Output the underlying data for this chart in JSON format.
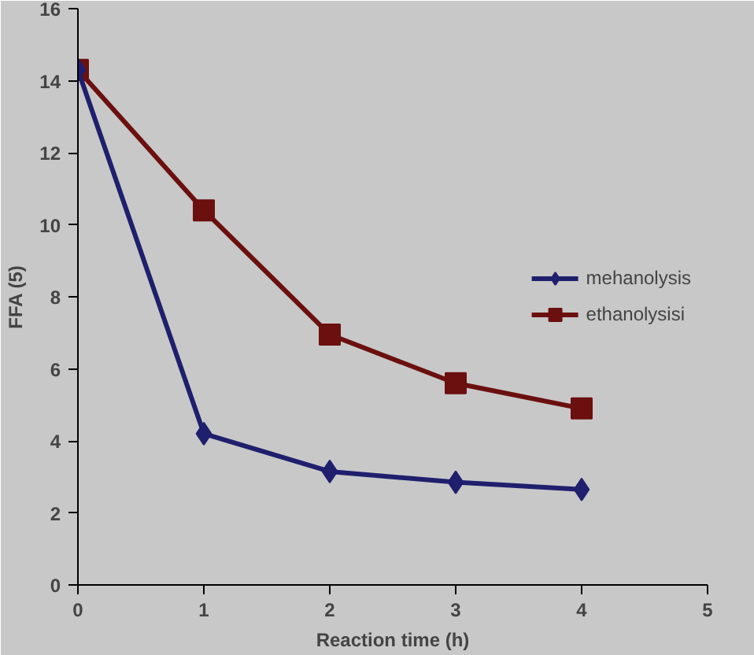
{
  "chart_data": {
    "type": "line",
    "xlabel": "Reaction time (h)",
    "ylabel": "FFA (5)",
    "x": [
      0,
      1,
      2,
      3,
      4
    ],
    "series": [
      {
        "name": "mehanolysis",
        "color": "#1f1f6e",
        "marker": "diamond",
        "values": [
          14.3,
          4.2,
          3.15,
          2.85,
          2.65
        ]
      },
      {
        "name": "ethanolysisi",
        "color": "#6b0f0f",
        "marker": "square",
        "values": [
          14.3,
          10.4,
          6.95,
          5.6,
          4.9
        ]
      }
    ],
    "xlim": [
      0,
      5
    ],
    "xticks": [
      0,
      1,
      2,
      3,
      4,
      5
    ],
    "ylim": [
      0,
      16
    ],
    "yticks": [
      0,
      2,
      4,
      6,
      8,
      10,
      12,
      14,
      16
    ],
    "grid": false,
    "legend": "right"
  }
}
